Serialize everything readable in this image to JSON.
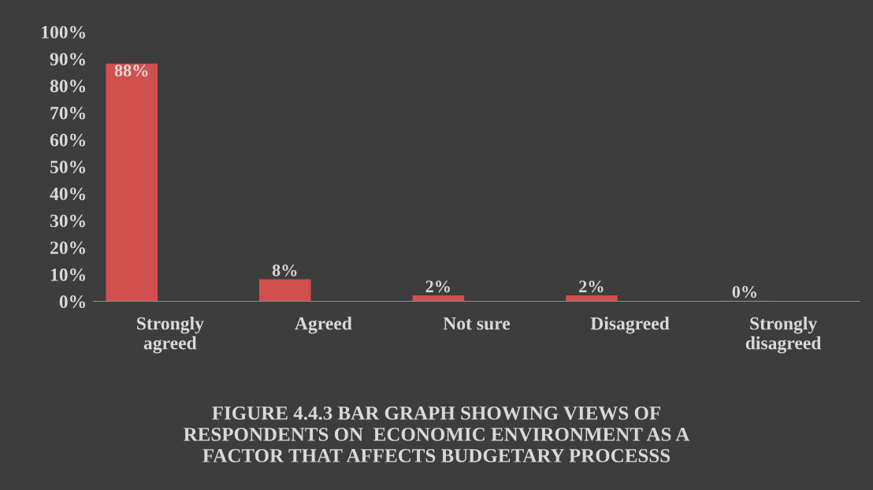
{
  "chart_data": {
    "type": "bar",
    "title": "FIGURE 4.4.3 BAR GRAPH SHOWING VIEWS OF\nRESPONDENTS ON  ECONOMIC ENVIRONMENT AS A\nFACTOR THAT AFFECTS BUDGETARY PROCESSS",
    "categories": [
      "Strongly\nagreed",
      "Agreed",
      "Not sure",
      "Disagreed",
      "Strongly\ndisagreed"
    ],
    "values": [
      88,
      8,
      2,
      2,
      0
    ],
    "value_labels": [
      "88%",
      "8%",
      "2%",
      "2%",
      "0%"
    ],
    "color": "#d0504f",
    "ylim": [
      0,
      100
    ],
    "yticks": [
      {
        "value": 0,
        "label": "0%"
      },
      {
        "value": 10,
        "label": "10%"
      },
      {
        "value": 20,
        "label": "20%"
      },
      {
        "value": 30,
        "label": "30%"
      },
      {
        "value": 40,
        "label": "40%"
      },
      {
        "value": 50,
        "label": "50%"
      },
      {
        "value": 60,
        "label": "60%"
      },
      {
        "value": 70,
        "label": "70%"
      },
      {
        "value": 80,
        "label": "80%"
      },
      {
        "value": 90,
        "label": "90%"
      },
      {
        "value": 100,
        "label": "100%"
      }
    ],
    "grid": false,
    "legend": false
  }
}
